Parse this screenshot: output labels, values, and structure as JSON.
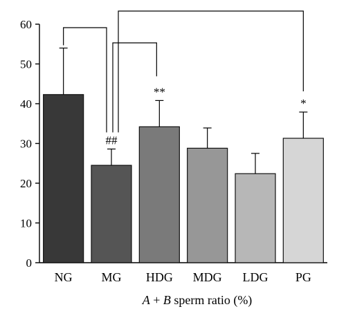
{
  "chart_data": {
    "type": "bar",
    "categories": [
      "NG",
      "MG",
      "HDG",
      "MDG",
      "LDG",
      "PG"
    ],
    "values": [
      42.3,
      24.5,
      34.2,
      28.8,
      22.4,
      31.3
    ],
    "error_upper": [
      54.0,
      28.6,
      40.8,
      33.9,
      27.5,
      37.9
    ],
    "bar_colors": [
      "#383838",
      "#555555",
      "#7a7a7a",
      "#979797",
      "#b7b7b7",
      "#d6d6d6"
    ],
    "significance_labels": [
      "",
      "##",
      "**",
      "",
      "",
      "*"
    ],
    "brackets": [
      {
        "from": "NG",
        "to": "MG"
      },
      {
        "from": "MG",
        "to": "HDG"
      },
      {
        "from": "MG",
        "to": "PG"
      }
    ],
    "ylim": [
      0,
      60
    ],
    "yticks": [
      0,
      10,
      20,
      30,
      40,
      50,
      60
    ],
    "xlabel": "A + B sperm ratio (%)",
    "xlabel_parts": {
      "a": "A",
      "plus": " + ",
      "b": "B",
      "rest": " sperm ratio (%)"
    },
    "ylabel": "",
    "grid": false
  }
}
